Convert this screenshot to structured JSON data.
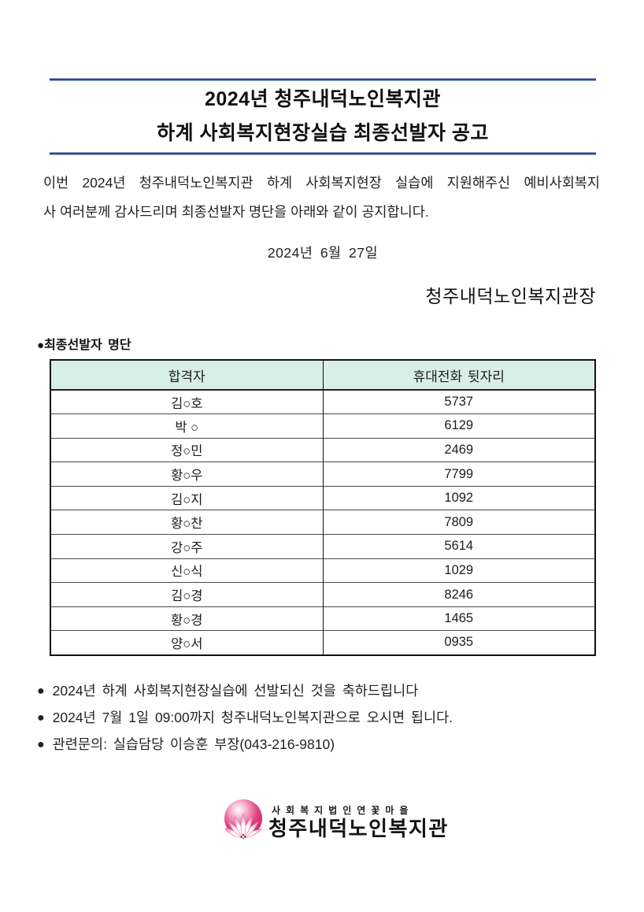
{
  "document": {
    "title_line1": "2024년 청주내덕노인복지관",
    "title_line2": "하계 사회복지현장실습 최종선발자 공고",
    "intro_line1": "이번 2024년 청주내덕노인복지관 하계 사회복지현장 실습에 지원해주신 예비사회복지",
    "intro_line2": "사 여러분께 감사드리며 최종선발자 명단을 아래와 같이 공지합니다.",
    "date": "2024년 6월 27일",
    "signature": "청주내덕노인복지관장",
    "list_bullet": "●",
    "list_heading": "최종선발자 명단",
    "note_bullet": "●"
  },
  "table": {
    "headers": [
      "합격자",
      "휴대전화 뒷자리"
    ],
    "rows": [
      [
        "김○호",
        "5737"
      ],
      [
        "박 ○",
        "6129"
      ],
      [
        "정○민",
        "2469"
      ],
      [
        "황○우",
        "7799"
      ],
      [
        "김○지",
        "1092"
      ],
      [
        "황○찬",
        "7809"
      ],
      [
        "강○주",
        "5614"
      ],
      [
        "신○식",
        "1029"
      ],
      [
        "김○경",
        "8246"
      ],
      [
        "황○경",
        "1465"
      ],
      [
        "양○서",
        "0935"
      ]
    ]
  },
  "notes": [
    "2024년 하계 사회복지현장실습에 선발되신 것을 축하드립니다",
    "2024년 7월 1일 09:00까지 청주내덕노인복지관으로 오시면 됩니다.",
    "관련문의: 실습담당 이승훈 부장(043-216-9810)"
  ],
  "footer_logo": {
    "org_type": "사회복지법인 연꽃마을",
    "org_type_spaced": "사 회 복 지 법 인 연 꽃 마 을",
    "org_name": "청주내덕노인복지관"
  },
  "colors": {
    "rule_blue_dark": "#29467f",
    "rule_blue_light": "#9aaed4",
    "table_header_bg": "#d9eee7",
    "table_border": "#111111",
    "logo_pink": "#e0407e",
    "logo_pink_deep": "#c21f5e",
    "logo_pink_light": "#f6bcd4",
    "text": "#1c1c1c"
  }
}
